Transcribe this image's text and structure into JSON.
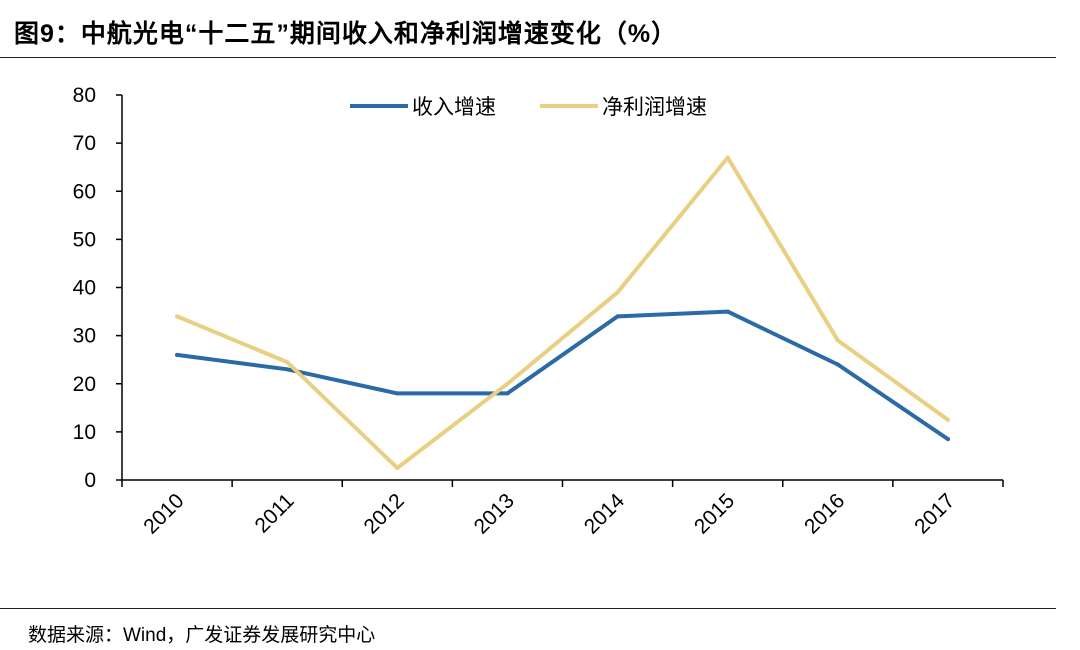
{
  "title": "图9：中航光电“十二五”期间收入和净利润增速变化（%）",
  "source": "数据来源：Wind，广发证券发展研究中心",
  "chart_data": {
    "type": "line",
    "title": "图9：中航光电“十二五”期间收入和净利润增速变化（%）",
    "xlabel": "",
    "ylabel": "",
    "categories": [
      "2010",
      "2011",
      "2012",
      "2013",
      "2014",
      "2015",
      "2016",
      "2017"
    ],
    "ylim": [
      0,
      80
    ],
    "yticks": [
      0,
      10,
      20,
      30,
      40,
      50,
      60,
      70,
      80
    ],
    "legend_position": "top-center",
    "grid": false,
    "series": [
      {
        "name": "收入增速",
        "color": "#2a6aa6",
        "values": [
          26,
          23,
          18,
          18,
          34,
          35,
          24,
          8.5
        ]
      },
      {
        "name": "净利润增速",
        "color": "#e8cf82",
        "values": [
          34,
          24.5,
          2.5,
          20,
          39,
          67,
          29,
          12.5
        ]
      }
    ]
  }
}
